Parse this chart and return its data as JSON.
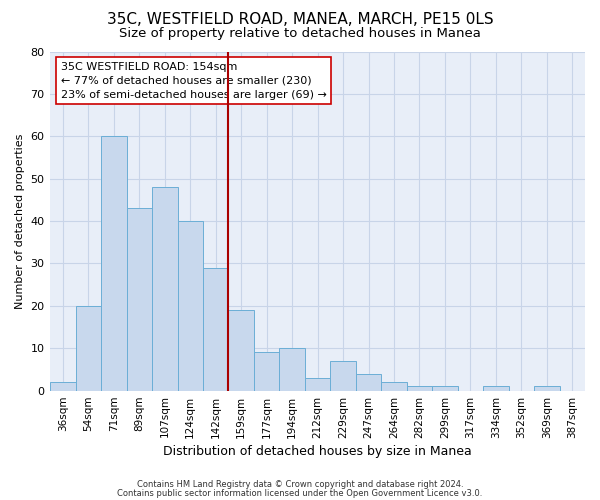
{
  "title": "35C, WESTFIELD ROAD, MANEA, MARCH, PE15 0LS",
  "subtitle": "Size of property relative to detached houses in Manea",
  "xlabel": "Distribution of detached houses by size in Manea",
  "ylabel": "Number of detached properties",
  "bin_labels": [
    "36sqm",
    "54sqm",
    "71sqm",
    "89sqm",
    "107sqm",
    "124sqm",
    "142sqm",
    "159sqm",
    "177sqm",
    "194sqm",
    "212sqm",
    "229sqm",
    "247sqm",
    "264sqm",
    "282sqm",
    "299sqm",
    "317sqm",
    "334sqm",
    "352sqm",
    "369sqm",
    "387sqm"
  ],
  "bar_heights": [
    2,
    20,
    60,
    43,
    48,
    40,
    29,
    19,
    9,
    10,
    3,
    7,
    4,
    2,
    1,
    1,
    0,
    1,
    0,
    1,
    0
  ],
  "bar_color": "#c8d8ed",
  "bar_edge_color": "#6baed6",
  "vline_color": "#aa0000",
  "annotation_text": "35C WESTFIELD ROAD: 154sqm\n← 77% of detached houses are smaller (230)\n23% of semi-detached houses are larger (69) →",
  "annotation_box_color": "#ffffff",
  "annotation_box_edge": "#cc0000",
  "ylim": [
    0,
    80
  ],
  "yticks": [
    0,
    10,
    20,
    30,
    40,
    50,
    60,
    70,
    80
  ],
  "grid_color": "#c8d4e8",
  "bg_color": "#e8eef8",
  "footer1": "Contains HM Land Registry data © Crown copyright and database right 2024.",
  "footer2": "Contains public sector information licensed under the Open Government Licence v3.0.",
  "title_fontsize": 11,
  "subtitle_fontsize": 9.5,
  "xlabel_fontsize": 9,
  "ylabel_fontsize": 8,
  "annotation_fontsize": 8
}
